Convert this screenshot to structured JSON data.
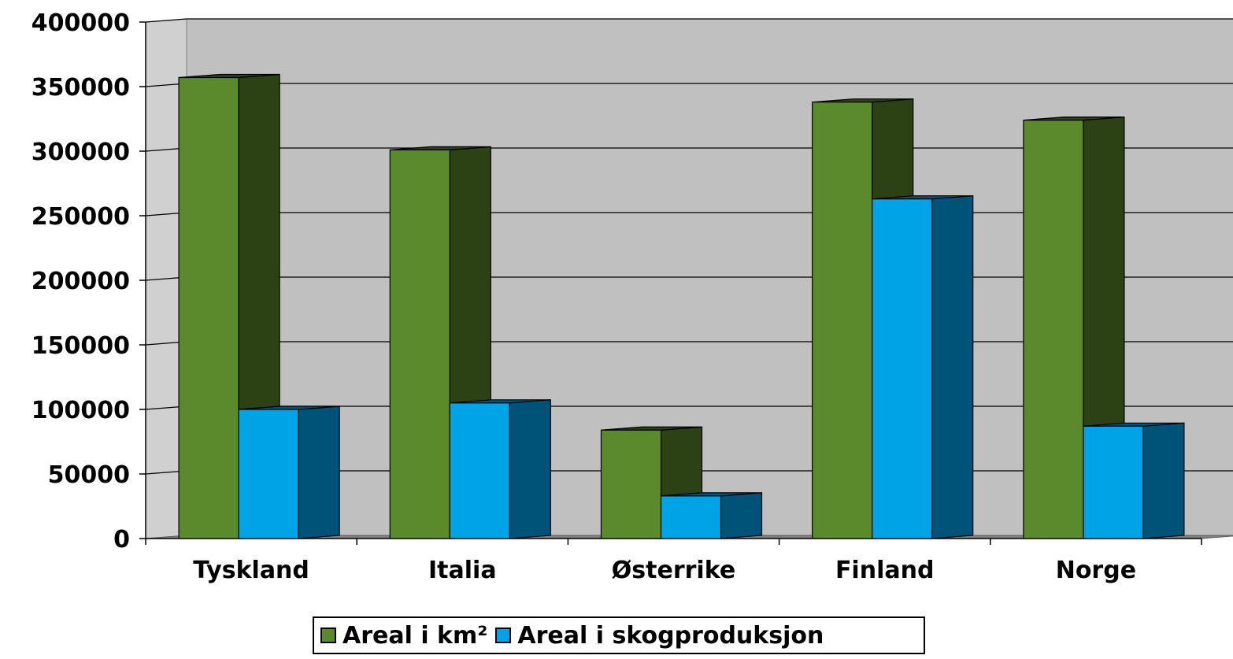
{
  "chart_data": {
    "type": "bar",
    "style": "3d-clustered-column",
    "categories": [
      "Tyskland",
      "Italia",
      "Østerrike",
      "Finland",
      "Norge"
    ],
    "series": [
      {
        "name": "Areal i km²",
        "values": [
          357000,
          301000,
          84000,
          338000,
          324000
        ],
        "color": "#5b8a2c",
        "side_color": "#2d4214"
      },
      {
        "name": "Areal i skogproduksjon",
        "values": [
          100000,
          105000,
          33000,
          263000,
          87000
        ],
        "color": "#00a3e6",
        "side_color": "#005378"
      }
    ],
    "y_ticks": [
      "0",
      "50000",
      "100000",
      "150000",
      "200000",
      "250000",
      "300000",
      "350000",
      "400000"
    ],
    "ylim": [
      0,
      400000
    ],
    "grid": true,
    "legend_position": "bottom",
    "wall_color": "#c0c0c0"
  }
}
